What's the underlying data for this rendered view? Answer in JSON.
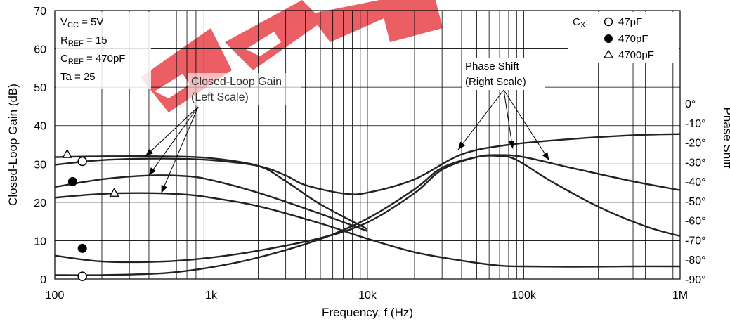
{
  "chart_data": {
    "type": "line",
    "title": "",
    "xlabel": "Frequency, f (Hz)",
    "ylabel_left": "Closed-Loop Gain (dB)",
    "ylabel_right": "Phase Shift",
    "x_scale": "log",
    "xlim": [
      100,
      1000000
    ],
    "ylim_left": [
      0,
      70
    ],
    "ylim_right": [
      -90,
      0
    ],
    "grid": true,
    "x_ticks": [
      {
        "value": 100,
        "label": "100"
      },
      {
        "value": 1000,
        "label": "1k"
      },
      {
        "value": 10000,
        "label": "10k"
      },
      {
        "value": 100000,
        "label": "100k"
      },
      {
        "value": 1000000,
        "label": "1M"
      }
    ],
    "y_ticks_left": [
      0,
      10,
      20,
      30,
      40,
      50,
      60,
      70
    ],
    "y_ticks_right": [
      {
        "value": 0,
        "label": "0°"
      },
      {
        "value": -10,
        "label": "-10°"
      },
      {
        "value": -20,
        "label": "-20°"
      },
      {
        "value": -30,
        "label": "-30°"
      },
      {
        "value": -40,
        "label": "-40°"
      },
      {
        "value": -50,
        "label": "-50°"
      },
      {
        "value": -60,
        "label": "-60°"
      },
      {
        "value": -70,
        "label": "-70°"
      },
      {
        "value": -80,
        "label": "-80°"
      },
      {
        "value": -90,
        "label": "-90°"
      }
    ],
    "conditions": {
      "vcc": {
        "sym": "V",
        "sub": "CC",
        "rest": " = 5V"
      },
      "rref": {
        "sym": "R",
        "sub": "REF",
        "rest": " = 15"
      },
      "cref": {
        "sym": "C",
        "sub": "REF",
        "rest": " = 470pF"
      },
      "ta": "Ta = 25"
    },
    "legend": {
      "title_sym": "C",
      "title_sub": "X",
      "title_rest": ":",
      "position": "top-right",
      "items": [
        {
          "marker": "open-circle",
          "label": "47pF"
        },
        {
          "marker": "filled-circle",
          "label": "470pF"
        },
        {
          "marker": "open-triangle",
          "label": "4700pF"
        }
      ]
    },
    "annotations": {
      "gain_line1": "Closed-Loop Gain",
      "gain_line2": "(Left Scale)",
      "phase_line1": "Phase Shift",
      "phase_line2": "(Right Scale)"
    },
    "series": [
      {
        "marker": "open-triangle",
        "axis": "left",
        "x": [
          100,
          200,
          500,
          1000,
          2000,
          3000,
          5000,
          10000
        ],
        "y": [
          31.8,
          32.0,
          32.0,
          31.5,
          29.5,
          25.5,
          19.5,
          13.0
        ]
      },
      {
        "marker": "filled-circle",
        "axis": "left",
        "x": [
          100,
          200,
          500,
          1000,
          2000,
          3000,
          4000,
          7000,
          10000,
          20000,
          40000,
          80000,
          200000,
          500000,
          1000000
        ],
        "y": [
          29.8,
          31.0,
          31.4,
          31.0,
          29.5,
          27.0,
          24.5,
          22.3,
          22.5,
          26.0,
          32.5,
          35.0,
          36.5,
          37.5,
          37.8
        ]
      },
      {
        "marker": "open-circle",
        "axis": "left",
        "x": [
          100,
          200,
          400,
          700,
          1000,
          2000,
          5000,
          10000
        ],
        "y": [
          24.0,
          26.0,
          27.0,
          26.8,
          25.8,
          22.5,
          17.0,
          12.5
        ]
      },
      {
        "marker": "open-triangle",
        "axis": "left",
        "x": [
          100,
          200,
          400,
          700,
          1000,
          2000,
          5000,
          10000,
          20000,
          40000,
          70000,
          100000,
          200000,
          500000,
          1000000
        ],
        "y": [
          21.2,
          22.2,
          22.4,
          22.0,
          21.2,
          19.0,
          14.5,
          10.5,
          7.0,
          4.8,
          3.5,
          3.3,
          3.2,
          3.3,
          3.3
        ]
      },
      {
        "marker": "filled-circle",
        "axis": "right",
        "x": [
          100,
          200,
          500,
          1000,
          2000,
          5000,
          10000,
          20000,
          30000,
          50000,
          70000,
          100000,
          200000,
          500000,
          1000000
        ],
        "y": [
          -78.0,
          -81.0,
          -81.0,
          -79.0,
          -75.5,
          -69.0,
          -61.0,
          -46.0,
          -34.0,
          -27.5,
          -26.5,
          -27.5,
          -33.0,
          -40.0,
          -44.5
        ]
      },
      {
        "marker": "open-circle",
        "axis": "right",
        "x": [
          100,
          200,
          500,
          1000,
          2000,
          5000,
          10000,
          20000,
          30000,
          50000,
          70000,
          90000,
          150000,
          300000,
          600000,
          1000000
        ],
        "y": [
          -88.0,
          -88.0,
          -87.0,
          -84.0,
          -79.0,
          -69.5,
          -59.0,
          -44.0,
          -33.0,
          -27.5,
          -27.0,
          -29.0,
          -40.0,
          -53.0,
          -63.0,
          -68.0
        ]
      }
    ],
    "markers": [
      {
        "shape": "open-circle",
        "x": 150,
        "y": 30.7,
        "axis": "left"
      },
      {
        "shape": "open-triangle",
        "x": 120,
        "y": 32.6,
        "axis": "left"
      },
      {
        "shape": "filled-circle",
        "x": 130,
        "y": 25.4,
        "axis": "left"
      },
      {
        "shape": "open-triangle",
        "x": 240,
        "y": 22.5,
        "axis": "left"
      },
      {
        "shape": "filled-circle",
        "x": 150,
        "y": 8.0,
        "axis": "left"
      },
      {
        "shape": "open-circle",
        "x": 150,
        "y": 0.7,
        "axis": "left"
      }
    ],
    "arrows": {
      "gain": [
        {
          "x": 380,
          "y": 32.0
        },
        {
          "x": 400,
          "y": 27.0
        },
        {
          "x": 480,
          "y": 22.4
        }
      ],
      "phase": [
        {
          "x": 38000,
          "y": 33.7
        },
        {
          "x": 85000,
          "y": 34.0
        },
        {
          "x": 145000,
          "y": 31.0
        }
      ]
    }
  },
  "watermark": "Aiwi"
}
